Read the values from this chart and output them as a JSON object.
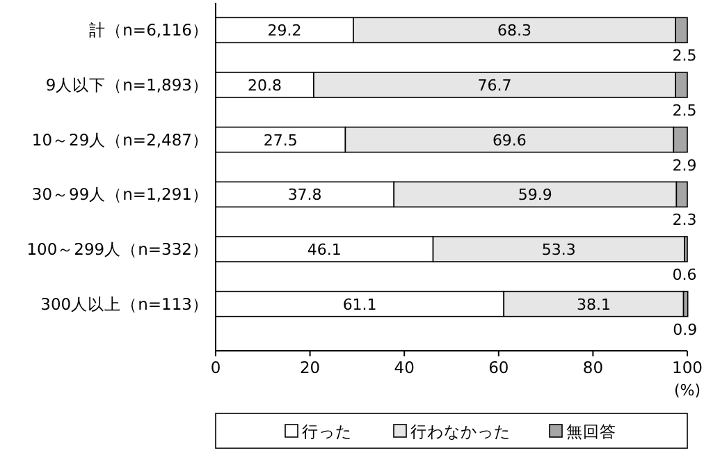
{
  "chart_data": {
    "type": "bar",
    "orientation": "horizontal",
    "stacked": true,
    "categories": [
      "計（n=6,116）",
      "9人以下（n=1,893）",
      "10～29人（n=2,487）",
      "30～99人（n=1,291）",
      "100～299人（n=332）",
      "300人以上（n=113）"
    ],
    "series": [
      {
        "name": "行った",
        "color": "#ffffff",
        "values": [
          29.2,
          20.8,
          27.5,
          37.8,
          46.1,
          61.1
        ]
      },
      {
        "name": "行わなかった",
        "color": "#e6e6e6",
        "values": [
          68.3,
          76.7,
          69.6,
          59.9,
          53.3,
          38.1
        ]
      },
      {
        "name": "無回答",
        "color": "#a6a6a6",
        "values": [
          2.5,
          2.5,
          2.9,
          2.3,
          0.6,
          0.9
        ]
      }
    ],
    "xlim": [
      0,
      100
    ],
    "xticks": [
      0,
      20,
      40,
      60,
      80,
      100
    ],
    "xlabel": "(%)",
    "data_labels": true,
    "legend": "bottom"
  }
}
